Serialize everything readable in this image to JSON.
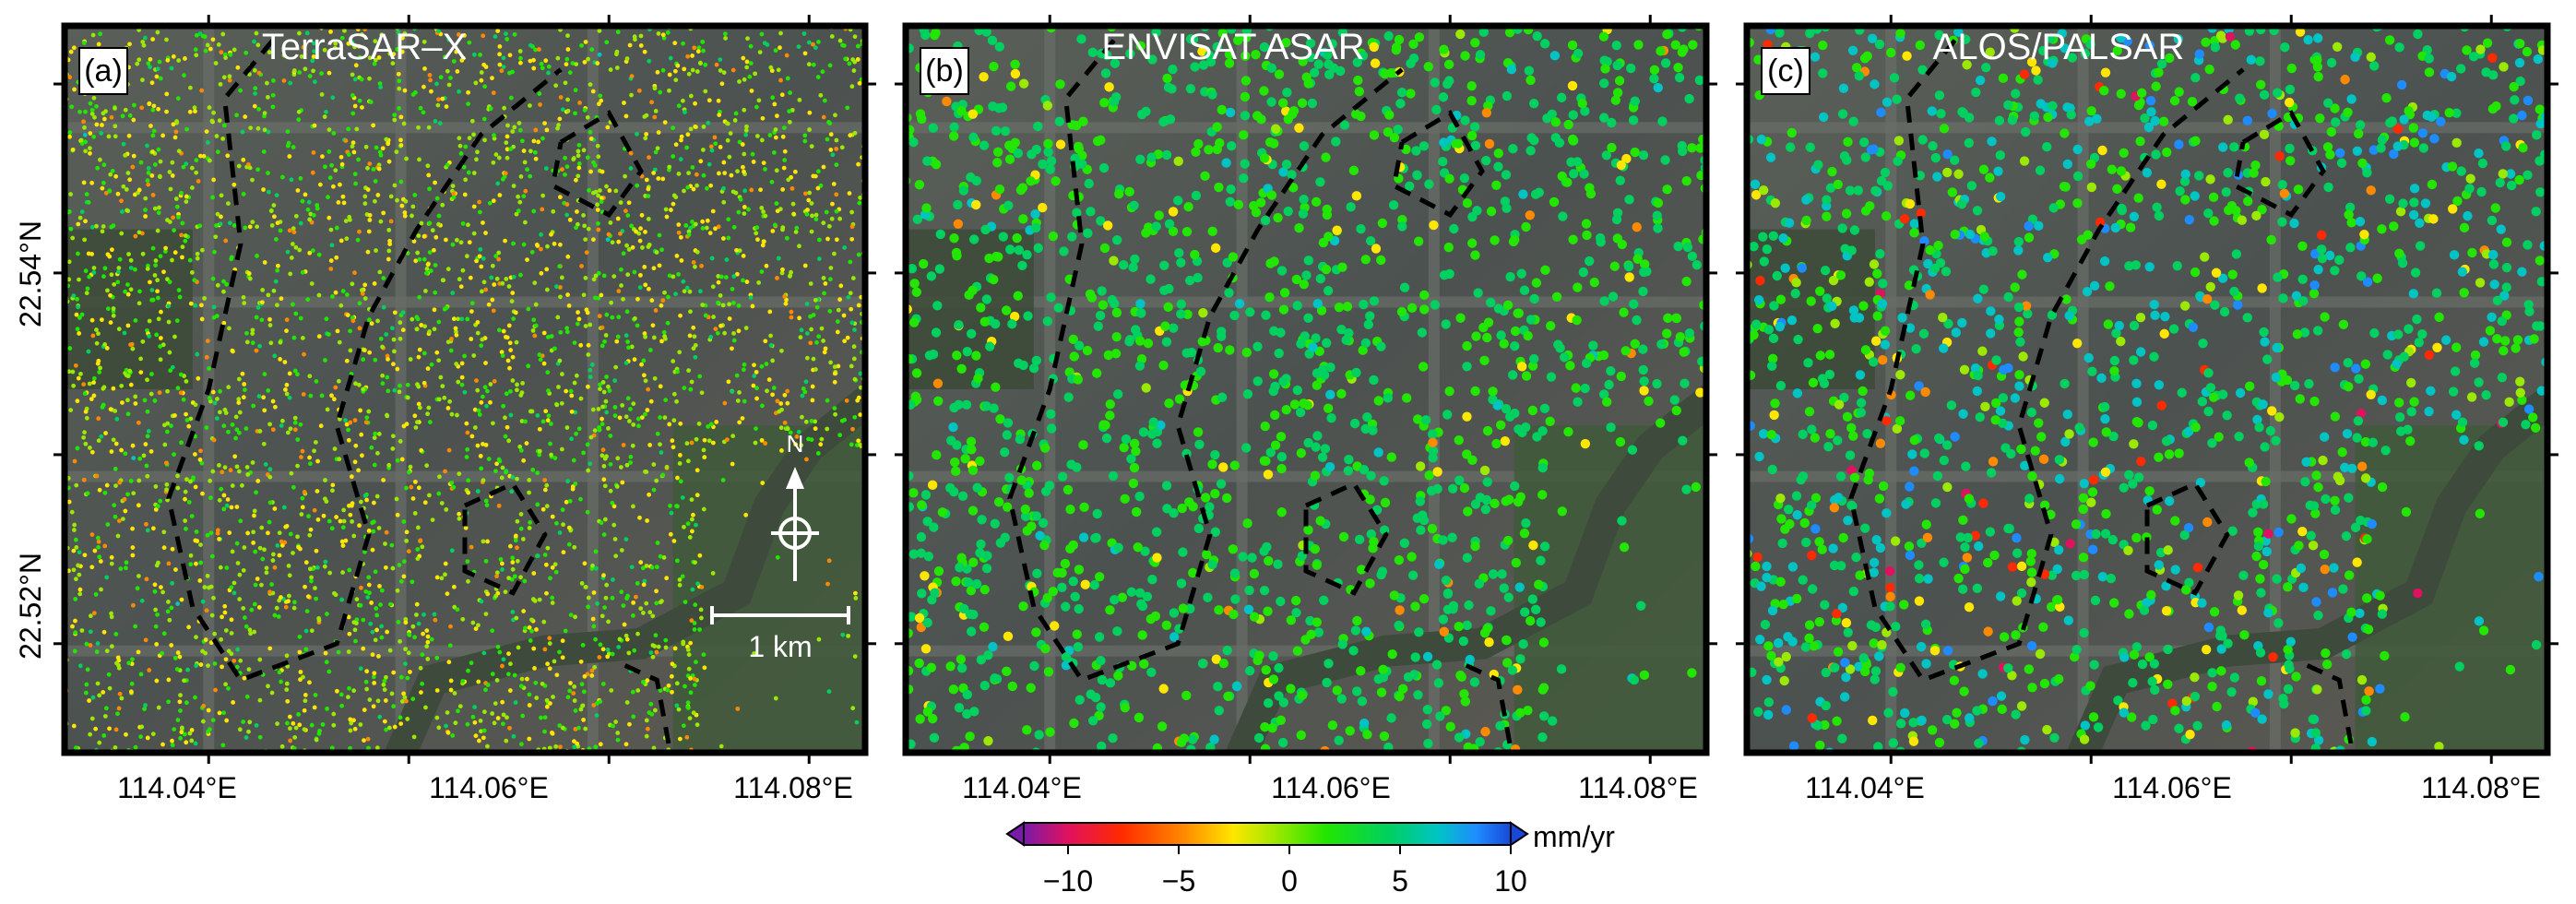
{
  "figure": {
    "panels": [
      {
        "id": "a",
        "label": "(a)",
        "title": "TerraSAR–X"
      },
      {
        "id": "b",
        "label": "(b)",
        "title": "ENVISAT ASAR"
      },
      {
        "id": "c",
        "label": "(c)",
        "title": "ALOS/PALSAR"
      }
    ],
    "lat_ticks": [
      "22.54°N",
      "22.52°N"
    ],
    "lon_ticks": [
      "114.04°E",
      "114.06°E",
      "114.08°E"
    ],
    "north_label": "N",
    "scale_label": "1 km",
    "colorbar": {
      "unit": "mm/yr",
      "ticks": [
        "−10",
        "−5",
        "0",
        "5",
        "10"
      ],
      "range": [
        -12,
        10
      ],
      "colors": [
        "#7a1aa8",
        "#e0115f",
        "#ff2a00",
        "#ff8a00",
        "#ffe600",
        "#9be800",
        "#22e600",
        "#00d060",
        "#00c4c4",
        "#1e8cff",
        "#1848d8"
      ]
    }
  }
}
